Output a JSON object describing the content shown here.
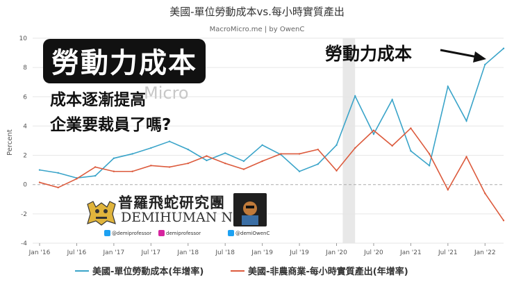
{
  "chart_data": {
    "type": "line",
    "title": "美國-單位勞動成本vs.每小時實質產出",
    "subtitle": "MacroMicro.me | by OwenC",
    "ylabel": "Percent",
    "ylim": [
      -4,
      10
    ],
    "yticks": [
      -4,
      -2,
      0,
      2,
      4,
      6,
      8,
      10
    ],
    "x": [
      "2016-01",
      "2016-04",
      "2016-07",
      "2016-10",
      "2017-01",
      "2017-04",
      "2017-07",
      "2017-10",
      "2018-01",
      "2018-04",
      "2018-07",
      "2018-10",
      "2019-01",
      "2019-04",
      "2019-07",
      "2019-10",
      "2020-01",
      "2020-04",
      "2020-07",
      "2020-10",
      "2021-01",
      "2021-04",
      "2021-07",
      "2021-10",
      "2022-01",
      "2022-04"
    ],
    "xticks": [
      "Jan '16",
      "Jul '16",
      "Jan '17",
      "Jul '17",
      "Jan '18",
      "Jul '18",
      "Jan '19",
      "Jul '19",
      "Jan '20",
      "Jul '20",
      "Jan '21",
      "Jul '21",
      "Jan '22"
    ],
    "shaded": {
      "from": "2020-02",
      "to": "2020-04"
    },
    "series": [
      {
        "name": "美國-單位勞動成本(年增率)",
        "color": "#3aa4c9",
        "values": [
          1.0,
          0.8,
          0.45,
          0.6,
          1.8,
          2.1,
          2.5,
          2.95,
          2.4,
          1.65,
          2.15,
          1.6,
          2.7,
          2.05,
          0.9,
          1.4,
          2.7,
          6.05,
          3.45,
          5.8,
          2.3,
          1.3,
          6.7,
          4.35,
          8.2,
          9.3
        ]
      },
      {
        "name": "美國-非農商業-每小時實質產出(年增率)",
        "color": "#dc5a3c",
        "values": [
          0.15,
          -0.2,
          0.4,
          1.2,
          0.9,
          0.9,
          1.3,
          1.2,
          1.45,
          1.95,
          1.45,
          1.05,
          1.6,
          2.1,
          2.1,
          2.4,
          0.95,
          2.5,
          3.7,
          2.65,
          3.85,
          2.1,
          -0.35,
          1.9,
          -0.6,
          -2.45
        ]
      }
    ],
    "grid": true,
    "legend": "bottom"
  },
  "overlay": {
    "headline": "勞動力成本",
    "sub_line1": "成本逐漸提高",
    "sub_line2": "企業要裁員了嗎?",
    "arrow_label": "勞動力成本 ⟶"
  },
  "watermark": "Micro",
  "nft_badge": {
    "chinese": "普羅飛蛇研究團",
    "english": "DEMIHUMAN NFT",
    "handles": [
      "@demiprofessor",
      "demiprofessor",
      "@demiOwenC"
    ]
  }
}
